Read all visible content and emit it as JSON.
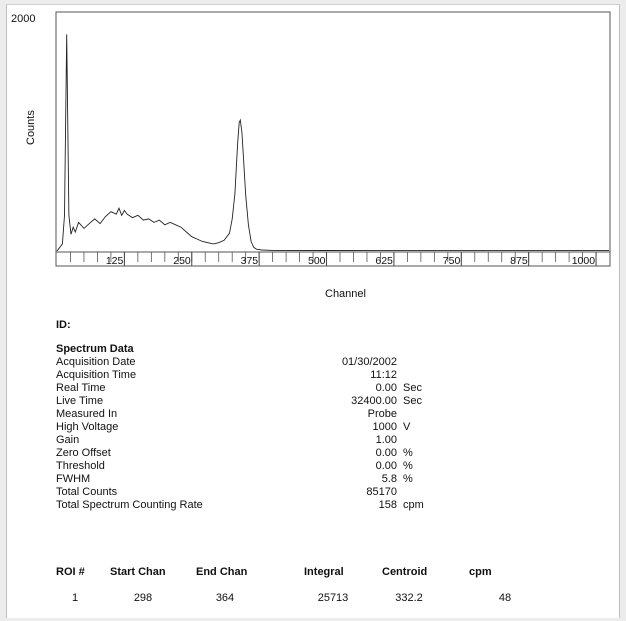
{
  "chart_data": {
    "type": "line",
    "ylabel": "Counts",
    "xlabel": "Channel",
    "y_max_label": "2000",
    "ylim": [
      0,
      2000
    ],
    "xlim": [
      0,
      1024
    ],
    "x_ticks": [
      "125",
      "250",
      "375",
      "500",
      "625",
      "750",
      "875",
      "1000"
    ],
    "x_tick_values": [
      125,
      250,
      375,
      500,
      625,
      750,
      875,
      1000
    ],
    "grid": false,
    "series": [
      {
        "x": [
          0,
          10,
          14,
          18,
          22,
          26,
          30,
          34,
          40,
          50,
          60,
          70,
          80,
          90,
          100,
          110,
          115,
          120,
          125,
          130,
          140,
          150,
          160,
          170,
          180,
          190,
          200,
          210,
          220,
          230,
          240,
          250,
          260,
          270,
          280,
          290,
          300,
          310,
          320,
          325,
          330,
          335,
          338,
          340,
          343,
          346,
          350,
          355,
          360,
          365,
          370,
          380,
          400,
          500,
          600,
          700,
          800,
          900,
          1024
        ],
        "y": [
          0,
          60,
          300,
          1820,
          300,
          140,
          200,
          160,
          240,
          190,
          230,
          270,
          230,
          290,
          330,
          310,
          360,
          300,
          340,
          310,
          280,
          300,
          260,
          270,
          240,
          260,
          220,
          240,
          220,
          200,
          160,
          120,
          100,
          80,
          70,
          60,
          70,
          90,
          150,
          270,
          480,
          900,
          1080,
          1100,
          1000,
          780,
          470,
          220,
          80,
          30,
          15,
          8,
          5,
          4,
          3,
          3,
          3,
          3,
          3
        ]
      }
    ]
  },
  "report": {
    "id_label": "ID:",
    "section_title": "Spectrum Data",
    "rows": [
      {
        "label": "Acquisition Date",
        "value": "01/30/2002",
        "unit": ""
      },
      {
        "label": "Acquisition Time",
        "value": "11:12",
        "unit": ""
      },
      {
        "label": "Real Time",
        "value": "0.00",
        "unit": "Sec"
      },
      {
        "label": "Live Time",
        "value": "32400.00",
        "unit": "Sec"
      },
      {
        "label": "Measured In",
        "value": "Probe",
        "unit": ""
      },
      {
        "label": "High Voltage",
        "value": "1000",
        "unit": "V"
      },
      {
        "label": "Gain",
        "value": "1.00",
        "unit": ""
      },
      {
        "label": "Zero Offset",
        "value": "0.00",
        "unit": "%"
      },
      {
        "label": "Threshold",
        "value": "0.00",
        "unit": "%"
      },
      {
        "label": "FWHM",
        "value": "5.8",
        "unit": "%"
      },
      {
        "label": "Total Counts",
        "value": "85170",
        "unit": ""
      },
      {
        "label": "Total Spectrum Counting Rate",
        "value": "158",
        "unit": "cpm"
      }
    ]
  },
  "roi_table": {
    "headers": [
      "ROI #",
      "Start Chan",
      "End Chan",
      "Integral",
      "Centroid",
      "cpm"
    ],
    "rows": [
      [
        "1",
        "298",
        "364",
        "25713",
        "332.2",
        "48"
      ]
    ]
  }
}
